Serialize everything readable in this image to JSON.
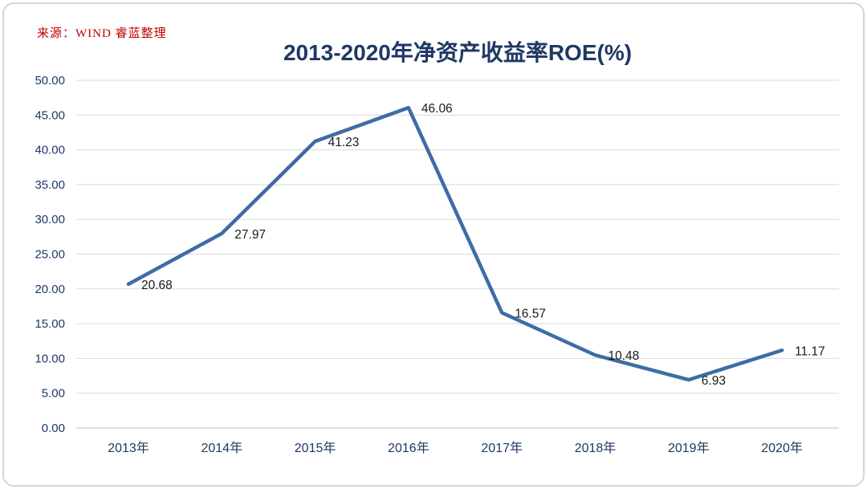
{
  "page": {
    "source_note": "来源：WIND 睿蓝整理",
    "title": "2013-2020年净资产收益率ROE(%)"
  },
  "chart_data": {
    "type": "line",
    "title": "2013-2020年净资产收益率ROE(%)",
    "source": "来源：WIND 睿蓝整理",
    "categories": [
      "2013年",
      "2014年",
      "2015年",
      "2016年",
      "2017年",
      "2018年",
      "2019年",
      "2020年"
    ],
    "series": [
      {
        "name": "净资产收益率ROE(%)",
        "values": [
          20.68,
          27.97,
          41.23,
          46.06,
          16.57,
          10.48,
          6.93,
          11.17
        ]
      }
    ],
    "data_labels": [
      "20.68",
      "27.97",
      "41.23",
      "46.06",
      "16.57",
      "10.48",
      "6.93",
      "11.17"
    ],
    "ylim": [
      0,
      50
    ],
    "ytick_step": 5,
    "ytick_labels": [
      "0.00",
      "5.00",
      "10.00",
      "15.00",
      "20.00",
      "25.00",
      "30.00",
      "35.00",
      "40.00",
      "45.00",
      "50.00"
    ],
    "grid": true,
    "legend": "none",
    "colors": {
      "line": "#3f6ca6",
      "title": "#1f3864",
      "axis_tick": "#1f3864",
      "gridline": "#d9d9d9",
      "axis_line": "#bfbfbf",
      "data_label": "#1a1a1a",
      "source": "#c00000"
    }
  }
}
